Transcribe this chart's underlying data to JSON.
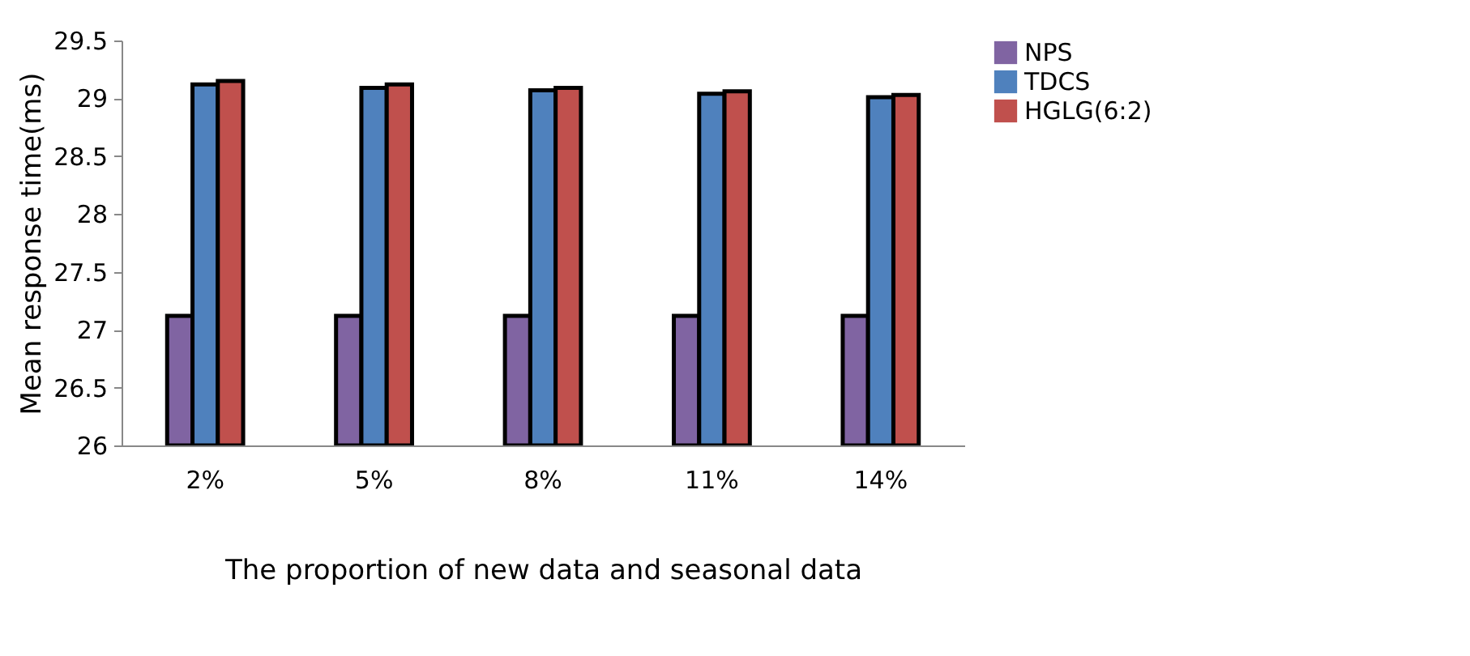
{
  "chart_data": {
    "type": "bar",
    "xlabel": "The proportion of new data and seasonal data",
    "ylabel": "Mean response time(ms)",
    "categories": [
      "2%",
      "5%",
      "8%",
      "11%",
      "14%"
    ],
    "series": [
      {
        "name": "NPS",
        "color": "#8064a2",
        "values": [
          27.12,
          27.12,
          27.12,
          27.12,
          27.12
        ]
      },
      {
        "name": "TDCS",
        "color": "#4f81bd",
        "values": [
          29.12,
          29.09,
          29.07,
          29.04,
          29.01
        ]
      },
      {
        "name": "HGLG(6:2)",
        "color": "#c0504d",
        "values": [
          29.15,
          29.12,
          29.09,
          29.06,
          29.03
        ]
      }
    ],
    "ylim": [
      26,
      29.5
    ],
    "yticks": [
      26,
      26.5,
      27,
      27.5,
      28,
      28.5,
      29,
      29.5
    ],
    "grid": false,
    "legend": "right"
  }
}
